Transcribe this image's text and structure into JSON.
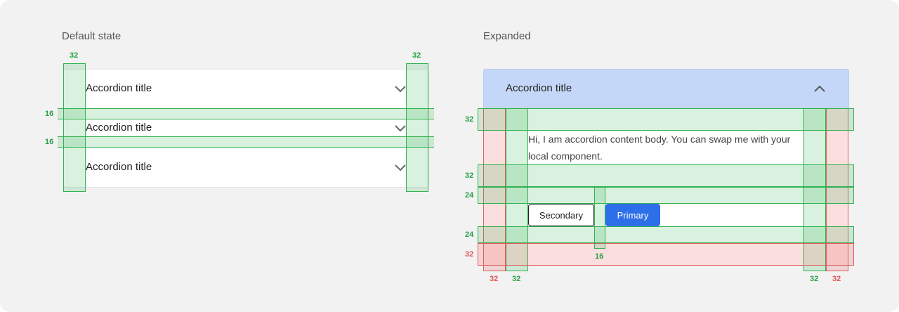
{
  "left": {
    "heading": "Default state",
    "items": [
      {
        "title": "Accordion title"
      },
      {
        "title": "Accordion title"
      },
      {
        "title": "Accordion title"
      }
    ],
    "dims": {
      "left_pad": "32",
      "right_pad": "32",
      "gap1": "16",
      "gap2": "16"
    }
  },
  "right": {
    "heading": "Expanded",
    "title": "Accordion title",
    "body": "Hi, I am accordion content body. You can swap me with your local component.",
    "secondary_label": "Secondary",
    "primary_label": "Primary",
    "dims": {
      "top": "32",
      "after_body": "32",
      "before_buttons": "24",
      "after_buttons": "24",
      "bottom": "32",
      "button_gap": "16",
      "outer_left": "32",
      "inner_left": "32",
      "inner_right": "32",
      "outer_right": "32"
    }
  },
  "colors": {
    "spacing_green": "#2fb24f",
    "spacing_red": "#e05b5b",
    "expanded_header": "#c5d7f8",
    "primary": "#2c6fe8"
  }
}
